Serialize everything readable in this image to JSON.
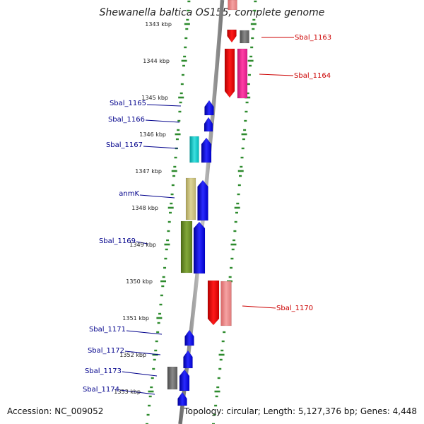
{
  "title": "Shewanella baltica OS155, complete genome",
  "footer": {
    "accession": "Accession: NC_009052",
    "summary": "Topology: circular; Length: 5,127,376 bp; Genes: 4,448"
  },
  "colors": {
    "forward_label": "#cc0000",
    "reverse_label": "#00008b",
    "dna": "#8c8c8c",
    "tick": "#2e8b2e"
  },
  "scale_labels": [
    {
      "text": "1343 kbp"
    },
    {
      "text": "1344 kbp"
    },
    {
      "text": "1345 kbp"
    },
    {
      "text": "1346 kbp"
    },
    {
      "text": "1347 kbp"
    },
    {
      "text": "1348 kbp"
    },
    {
      "text": "1349 kbp"
    },
    {
      "text": "1350 kbp"
    },
    {
      "text": "1351 kbp"
    },
    {
      "text": "1352 kbp"
    },
    {
      "text": "1353 kbp"
    }
  ],
  "gene_labels": [
    {
      "text": "Sbal_1163",
      "strand": "forward"
    },
    {
      "text": "Sbal_1164",
      "strand": "forward"
    },
    {
      "text": "Sbal_1165",
      "strand": "reverse"
    },
    {
      "text": "Sbal_1166",
      "strand": "reverse"
    },
    {
      "text": "Sbal_1167",
      "strand": "reverse"
    },
    {
      "text": "anmK",
      "strand": "reverse"
    },
    {
      "text": "Sbal_1169",
      "strand": "reverse"
    },
    {
      "text": "Sbal_1170",
      "strand": "forward"
    },
    {
      "text": "Sbal_1171",
      "strand": "reverse"
    },
    {
      "text": "Sbal_1172",
      "strand": "reverse"
    },
    {
      "text": "Sbal_1173",
      "strand": "reverse"
    },
    {
      "text": "Sbal_1174",
      "strand": "reverse"
    }
  ]
}
